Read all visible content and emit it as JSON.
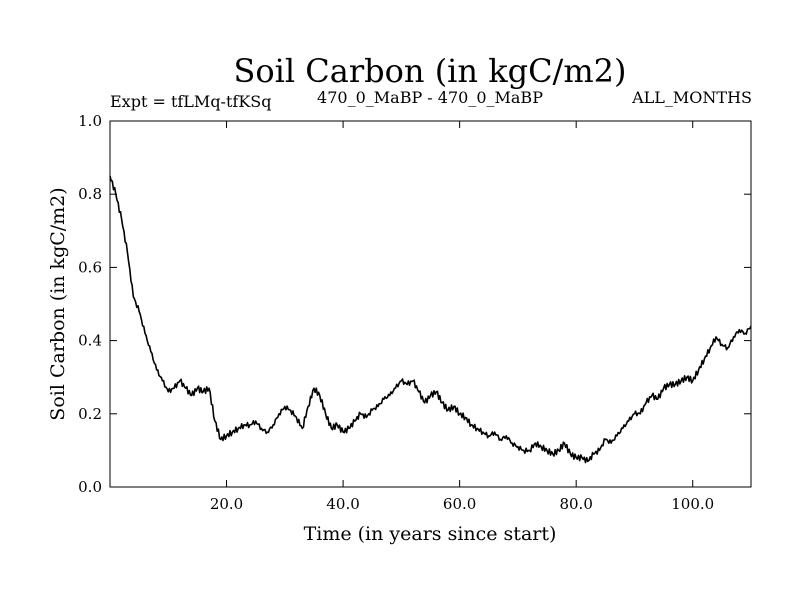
{
  "chart_data": {
    "type": "line",
    "title": "Soil Carbon (in kgC/m2)",
    "subtitle_left": "Expt = tfLMq-tfKSq",
    "subtitle_center": "470_0_MaBP - 470_0_MaBP",
    "subtitle_right": "ALL_MONTHS",
    "xlabel": "Time (in years since start)",
    "ylabel": "Soil Carbon (in kgC/m2)",
    "xlim": [
      0,
      110
    ],
    "ylim": [
      0.0,
      1.0
    ],
    "xticks": [
      20,
      40,
      60,
      80,
      100
    ],
    "xtick_labels": [
      "20.0",
      "40.0",
      "60.0",
      "80.0",
      "100.0"
    ],
    "yticks": [
      0.0,
      0.2,
      0.4,
      0.6,
      0.8,
      1.0
    ],
    "ytick_labels": [
      "0.0",
      "0.2",
      "0.4",
      "0.6",
      "0.8",
      "1.0"
    ],
    "grid": false,
    "series": [
      {
        "name": "Soil Carbon",
        "color": "#000000",
        "x": [
          0,
          1,
          2,
          3,
          4,
          5,
          6,
          7,
          8,
          9,
          10,
          11,
          12,
          13,
          14,
          15,
          16,
          17,
          18,
          19,
          20,
          21,
          22,
          23,
          24,
          25,
          26,
          27,
          28,
          29,
          30,
          31,
          32,
          33,
          34,
          35,
          36,
          37,
          38,
          39,
          40,
          41,
          42,
          43,
          44,
          45,
          46,
          47,
          48,
          49,
          50,
          51,
          52,
          53,
          54,
          55,
          56,
          57,
          58,
          59,
          60,
          61,
          62,
          63,
          64,
          65,
          66,
          67,
          68,
          69,
          70,
          71,
          72,
          73,
          74,
          75,
          76,
          77,
          78,
          79,
          80,
          81,
          82,
          83,
          84,
          85,
          86,
          87,
          88,
          89,
          90,
          91,
          92,
          93,
          94,
          95,
          96,
          97,
          98,
          99,
          100,
          101,
          102,
          103,
          104,
          105,
          106,
          107,
          108,
          109,
          110
        ],
        "values": [
          0.85,
          0.8,
          0.73,
          0.64,
          0.52,
          0.48,
          0.42,
          0.37,
          0.32,
          0.29,
          0.26,
          0.27,
          0.29,
          0.27,
          0.25,
          0.27,
          0.26,
          0.27,
          0.18,
          0.13,
          0.14,
          0.15,
          0.16,
          0.17,
          0.17,
          0.18,
          0.16,
          0.15,
          0.17,
          0.2,
          0.22,
          0.21,
          0.19,
          0.16,
          0.22,
          0.27,
          0.25,
          0.2,
          0.16,
          0.17,
          0.15,
          0.16,
          0.18,
          0.2,
          0.19,
          0.21,
          0.22,
          0.24,
          0.25,
          0.27,
          0.29,
          0.28,
          0.29,
          0.26,
          0.23,
          0.25,
          0.26,
          0.23,
          0.21,
          0.22,
          0.2,
          0.19,
          0.17,
          0.16,
          0.15,
          0.14,
          0.15,
          0.13,
          0.14,
          0.12,
          0.11,
          0.1,
          0.1,
          0.12,
          0.11,
          0.1,
          0.09,
          0.1,
          0.12,
          0.09,
          0.08,
          0.08,
          0.07,
          0.09,
          0.1,
          0.13,
          0.12,
          0.14,
          0.16,
          0.18,
          0.2,
          0.2,
          0.23,
          0.25,
          0.24,
          0.27,
          0.28,
          0.28,
          0.29,
          0.3,
          0.29,
          0.32,
          0.35,
          0.38,
          0.41,
          0.39,
          0.38,
          0.41,
          0.43,
          0.42,
          0.44
        ]
      }
    ]
  }
}
